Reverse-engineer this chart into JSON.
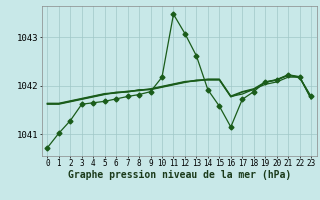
{
  "background_color": "#c8e8e8",
  "plot_bg_color": "#c8e8e8",
  "grid_color": "#a0c8c8",
  "line_color": "#1a5c1a",
  "marker_color": "#1a5c1a",
  "ylabel_ticks": [
    1041,
    1042,
    1043
  ],
  "xlim": [
    -0.5,
    23.5
  ],
  "ylim": [
    1040.55,
    1043.65
  ],
  "series": [
    [
      1040.72,
      1041.02,
      1041.28,
      1041.62,
      1041.65,
      1041.68,
      1041.73,
      1041.78,
      1041.82,
      1041.88,
      1042.18,
      1043.48,
      1043.08,
      1042.62,
      1041.92,
      1041.58,
      1041.15,
      1041.72,
      1041.88,
      1042.08,
      1042.12,
      1042.22,
      1042.18,
      1041.78
    ],
    [
      1041.62,
      1041.62,
      1041.67,
      1041.72,
      1041.77,
      1041.82,
      1041.87,
      1041.87,
      1041.92,
      1041.92,
      1041.97,
      1042.02,
      1042.07,
      1042.12,
      1042.12,
      1042.12,
      1041.77,
      1041.87,
      1041.92,
      1042.07,
      1042.12,
      1042.22,
      1042.17,
      1041.77
    ],
    [
      1041.63,
      1041.63,
      1041.68,
      1041.73,
      1041.78,
      1041.83,
      1041.85,
      1041.88,
      1041.9,
      1041.93,
      1041.98,
      1042.03,
      1042.08,
      1042.1,
      1042.13,
      1042.13,
      1041.78,
      1041.83,
      1041.93,
      1042.03,
      1042.08,
      1042.18,
      1042.18,
      1041.73
    ],
    [
      1041.64,
      1041.64,
      1041.69,
      1041.74,
      1041.79,
      1041.84,
      1041.86,
      1041.89,
      1041.91,
      1041.94,
      1041.99,
      1042.04,
      1042.09,
      1042.11,
      1042.14,
      1042.14,
      1041.79,
      1041.88,
      1041.94,
      1042.08,
      1042.13,
      1042.23,
      1042.19,
      1041.74
    ]
  ],
  "show_markers": [
    true,
    false,
    false,
    false
  ],
  "marker_size": 2.5,
  "linewidth": 0.9,
  "xlabel": "Graphe pression niveau de la mer (hPa)",
  "xlabel_fontsize": 7.0,
  "tick_fontsize": 5.5,
  "ylabel_fontsize": 6.5
}
